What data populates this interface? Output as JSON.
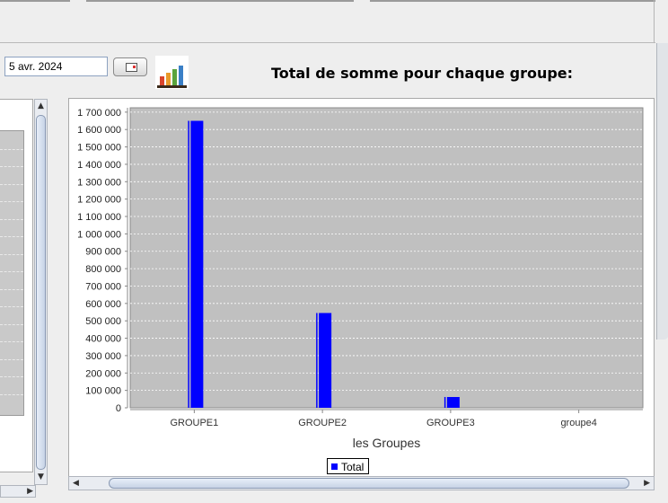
{
  "toolbar": {
    "date_value": "5 avr. 2024",
    "chart_button_icon": "bar-chart-icon",
    "calendar_button_icon": "calendar-icon"
  },
  "chart_title": "Total de somme pour chaque groupe:",
  "chart_data": {
    "type": "bar",
    "title": "",
    "xlabel": "les Groupes",
    "ylabel": "",
    "categories": [
      "GROUPE1",
      "GROUPE2",
      "GROUPE3",
      "groupe4"
    ],
    "series": [
      {
        "name": "Total",
        "values": [
          1650000,
          545000,
          62000,
          0
        ],
        "color": "#0000ff"
      }
    ],
    "ylim": [
      0,
      1700000
    ],
    "yticks": [
      "0",
      "100 000",
      "200 000",
      "300 000",
      "400 000",
      "500 000",
      "600 000",
      "700 000",
      "800 000",
      "900 000",
      "1 000 000",
      "1 100 000",
      "1 200 000",
      "1 300 000",
      "1 400 000",
      "1 500 000",
      "1 600 000",
      "1 700 000"
    ],
    "plot_background": "#c0c0c0",
    "grid": true,
    "legend": "bottom"
  },
  "legend": {
    "label": "Total"
  }
}
